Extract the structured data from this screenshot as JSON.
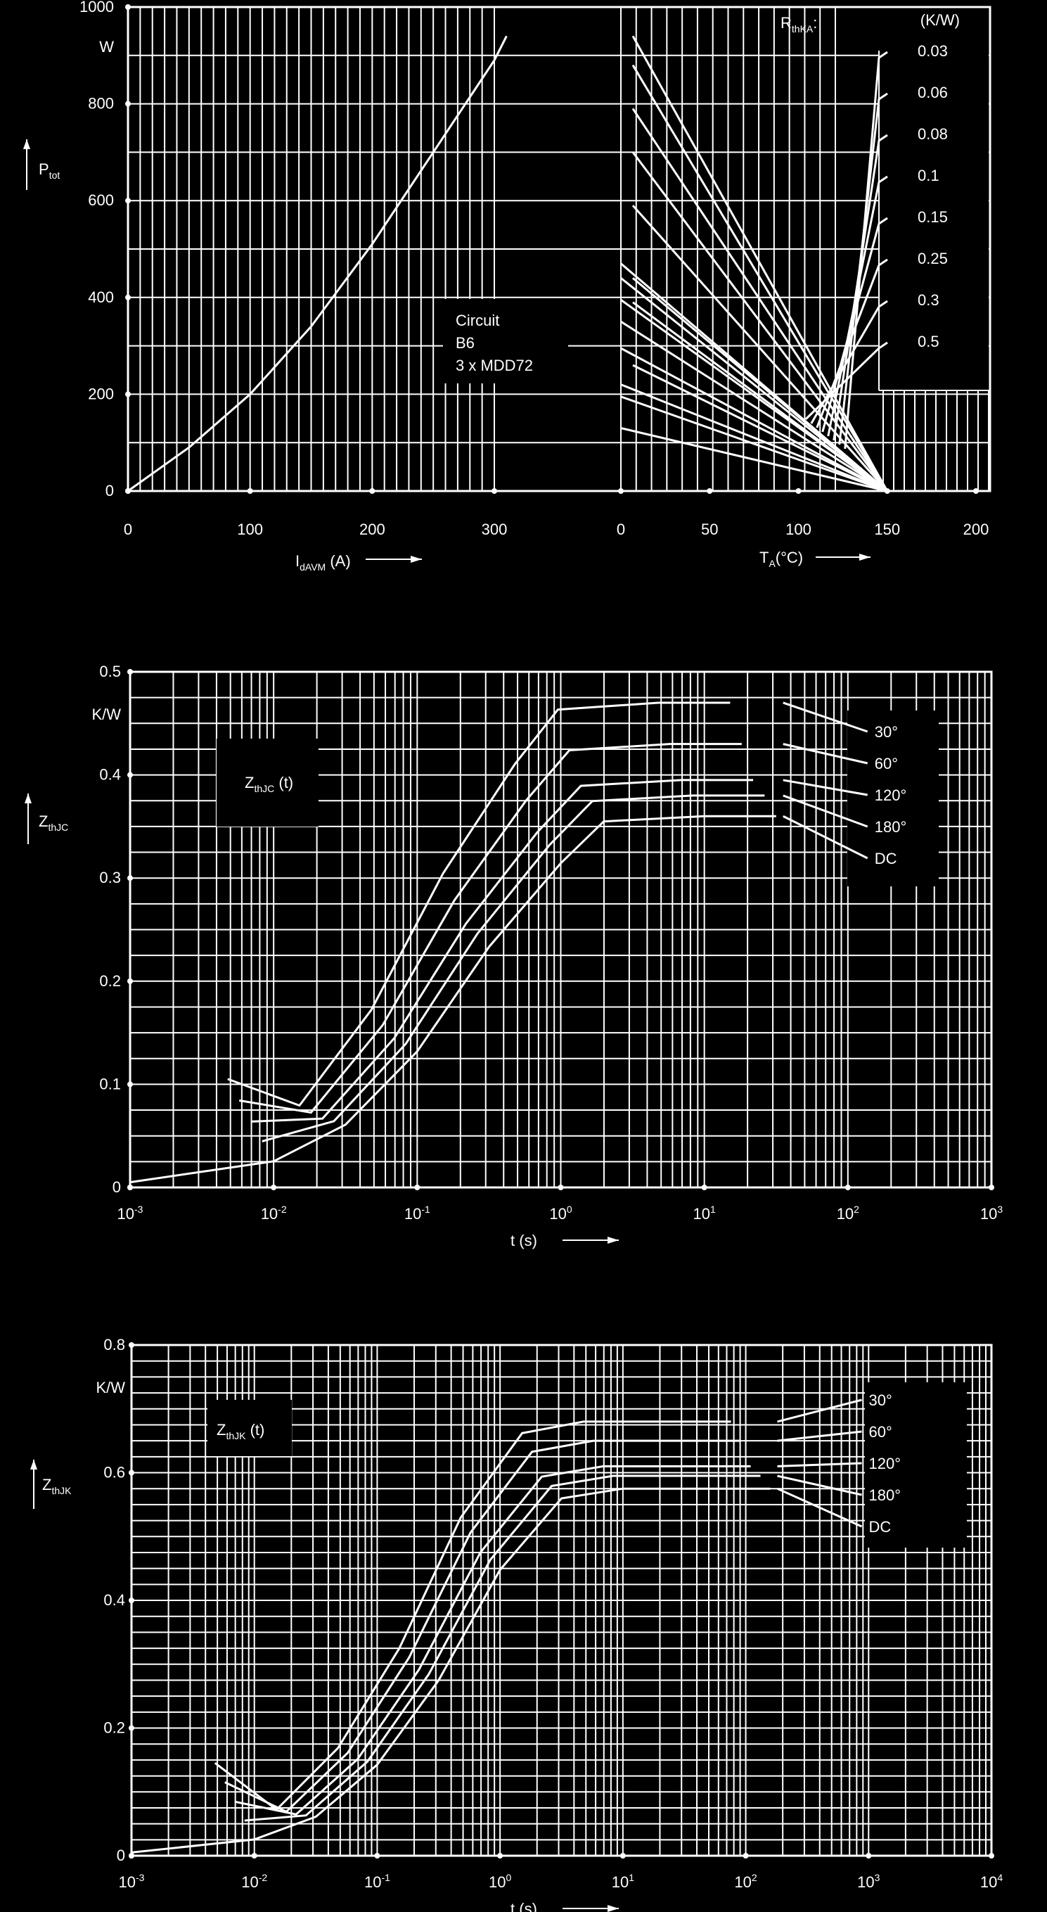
{
  "chart_data": [
    {
      "type": "line",
      "panel": "power-dissipation",
      "left": {
        "xlabel_main": "I",
        "xlabel_sub": "dAVM",
        "xlabel_unit": " (A)",
        "ylabel_main": "P",
        "ylabel_sub": "tot",
        "yunit": "W",
        "xlim": [
          0,
          300
        ],
        "ylim": [
          0,
          1000
        ],
        "x_ticks": [
          0,
          100,
          200,
          300
        ],
        "y_ticks": [
          0,
          200,
          400,
          600,
          800,
          1000
        ],
        "series": [
          {
            "x": [
              0,
              50,
              100,
              150,
              200,
              250,
              300,
              310
            ],
            "y": [
              0,
              90,
              200,
              340,
              510,
              700,
              890,
              940
            ]
          }
        ],
        "annotation": [
          "Circuit",
          "B6",
          "3 x MDD72"
        ]
      },
      "right": {
        "xlabel_main": "T",
        "xlabel_sub": "A",
        "xlabel_unit": "(°C)",
        "xlim": [
          0,
          200
        ],
        "x_ticks": [
          0,
          50,
          100,
          150,
          200
        ],
        "legend_title_main": "R",
        "legend_title_sub": "thKA",
        "legend_title_tail": ":",
        "legend_unit": "(K/W)",
        "series": [
          {
            "name": "0.03",
            "y_top": 940
          },
          {
            "name": "0.06",
            "y_top": 880
          },
          {
            "name": "0.08",
            "y_top": 790
          },
          {
            "name": "0.1",
            "y_top": 700
          },
          {
            "name": "0.15",
            "y_top": 590
          },
          {
            "name": "0.25",
            "y_top": 440
          },
          {
            "name": "0.3",
            "y_top": 390
          },
          {
            "name": "0.5",
            "y_top": 260
          }
        ],
        "convergence_x": 150
      }
    },
    {
      "type": "line",
      "panel": "zthjc",
      "ylabel_main": "Z",
      "ylabel_sub": "thJC",
      "yunit": "K/W",
      "xlabel": "t (s)",
      "xscale": "log",
      "xlim_exp": [
        -3,
        3
      ],
      "ylim": [
        0,
        0.5
      ],
      "x_tick_exps": [
        "-3",
        "-2",
        "-1",
        "0",
        "1",
        "2",
        "3"
      ],
      "y_ticks": [
        0,
        0.1,
        0.2,
        0.3,
        0.4,
        0.5
      ],
      "y_tick_labels": [
        "0",
        "0.1",
        "0.2",
        "0.3",
        "0.4",
        "0.5"
      ],
      "title_main": "Z",
      "title_sub": "thJC",
      "title_tail": " (t)",
      "series": [
        {
          "name": "30°",
          "y_end": 0.47
        },
        {
          "name": "60°",
          "y_end": 0.43
        },
        {
          "name": "120°",
          "y_end": 0.395
        },
        {
          "name": "180°",
          "y_end": 0.38
        },
        {
          "name": "DC",
          "y_end": 0.36
        }
      ],
      "dc_curve": {
        "x_exp": [
          -3,
          -2,
          -1.5,
          -1,
          -0.5,
          0,
          0.3,
          1,
          1.5
        ],
        "y": [
          0.005,
          0.025,
          0.06,
          0.13,
          0.23,
          0.31,
          0.35,
          0.355,
          0.355
        ]
      }
    },
    {
      "type": "line",
      "panel": "zthjk",
      "ylabel_main": "Z",
      "ylabel_sub": "thJK",
      "yunit": "K/W",
      "xlabel": "t (s)",
      "xscale": "log",
      "xlim_exp": [
        -3,
        4
      ],
      "ylim": [
        0,
        0.8
      ],
      "x_tick_exps": [
        "-3",
        "-2",
        "-1",
        "0",
        "1",
        "2",
        "3",
        "4"
      ],
      "y_ticks": [
        0,
        0.2,
        0.4,
        0.6,
        0.8
      ],
      "y_tick_labels": [
        "0",
        "0.2",
        "0.4",
        "0.6",
        "0.8"
      ],
      "title_main": "Z",
      "title_sub": "thJK",
      "title_tail": " (t)",
      "series": [
        {
          "name": "30°",
          "y_end": 0.68
        },
        {
          "name": "60°",
          "y_end": 0.65
        },
        {
          "name": "120°",
          "y_end": 0.61
        },
        {
          "name": "180°",
          "y_end": 0.595
        },
        {
          "name": "DC",
          "y_end": 0.575
        }
      ],
      "dc_curve": {
        "x_exp": [
          -3,
          -2,
          -1.5,
          -1,
          -0.5,
          0,
          0.5,
          1,
          2.2
        ],
        "y": [
          0.005,
          0.025,
          0.06,
          0.14,
          0.27,
          0.44,
          0.55,
          0.565,
          0.565
        ]
      }
    }
  ]
}
